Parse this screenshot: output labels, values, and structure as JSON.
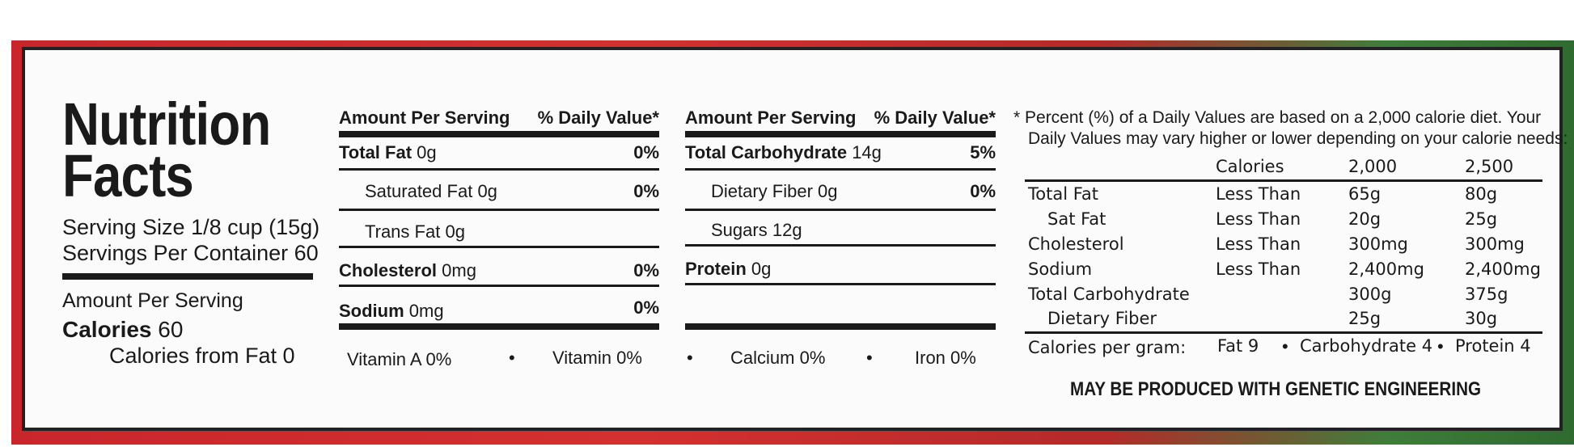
{
  "title_line1": "Nutrition",
  "title_line2": "Facts",
  "serving_size": "Serving Size 1/8 cup (15g)",
  "servings_per_container": "Servings Per Container 60",
  "amount_per_serving": "Amount Per Serving",
  "calories_label": "Calories",
  "calories_value": "60",
  "calories_from_fat": "Calories from Fat 0",
  "col_header_amount": "Amount Per Serving",
  "col_header_dv": "% Daily Value*",
  "left_rows": [
    {
      "label": "Total Fat",
      "amount": "0g",
      "dv": "0%"
    },
    {
      "label": "Saturated Fat",
      "amount": "0g",
      "dv": "0%"
    },
    {
      "label": "Trans Fat",
      "amount": "0g",
      "dv": ""
    },
    {
      "label": "Cholesterol",
      "amount": "0mg",
      "dv": "0%"
    },
    {
      "label": "Sodium",
      "amount": "0mg",
      "dv": "0%"
    }
  ],
  "right_rows": [
    {
      "label": "Total Carbohydrate",
      "amount": "14g",
      "dv": "5%"
    },
    {
      "label": "Dietary Fiber",
      "amount": "0g",
      "dv": "0%"
    },
    {
      "label": "Sugars",
      "amount": "12g",
      "dv": ""
    },
    {
      "label": "Protein",
      "amount": "0g",
      "dv": ""
    }
  ],
  "vitamins": [
    {
      "name": "Vitamin A",
      "value": "0%"
    },
    {
      "name": "Vitamin",
      "value": "0%"
    },
    {
      "name": "Calcium",
      "value": "0%"
    },
    {
      "name": "Iron",
      "value": "0%"
    }
  ],
  "bullet": "•",
  "footnote_line1": "* Percent (%) of a Daily Values are based on a 2,000 calorie diet. Your",
  "footnote_line2": "Daily Values may vary higher or lower depending on your calorie needs:",
  "dv_table": {
    "headers": [
      "Calories",
      "2,000",
      "2,500"
    ],
    "rows": [
      {
        "nutrient": "Total Fat",
        "limit": "Less Than",
        "v2000": "65g",
        "v2500": "80g"
      },
      {
        "nutrient": "Sat Fat",
        "limit": "Less Than",
        "v2000": "20g",
        "v2500": "25g"
      },
      {
        "nutrient": "Cholesterol",
        "limit": "Less Than",
        "v2000": "300mg",
        "v2500": "300mg"
      },
      {
        "nutrient": "Sodium",
        "limit": "Less Than",
        "v2000": "2,400mg",
        "v2500": "2,400mg"
      },
      {
        "nutrient": "Total Carbohydrate",
        "limit": "",
        "v2000": "300g",
        "v2500": "375g"
      },
      {
        "nutrient": "Dietary Fiber",
        "limit": "",
        "v2000": "25g",
        "v2500": "30g"
      }
    ]
  },
  "calories_per_gram": {
    "label": "Calories per gram:",
    "fat": "Fat 9",
    "carbohydrate": "Carbohydrate 4",
    "protein": "Protein 4"
  },
  "ge_statement": "MAY BE PRODUCED WITH GENETIC ENGINEERING"
}
